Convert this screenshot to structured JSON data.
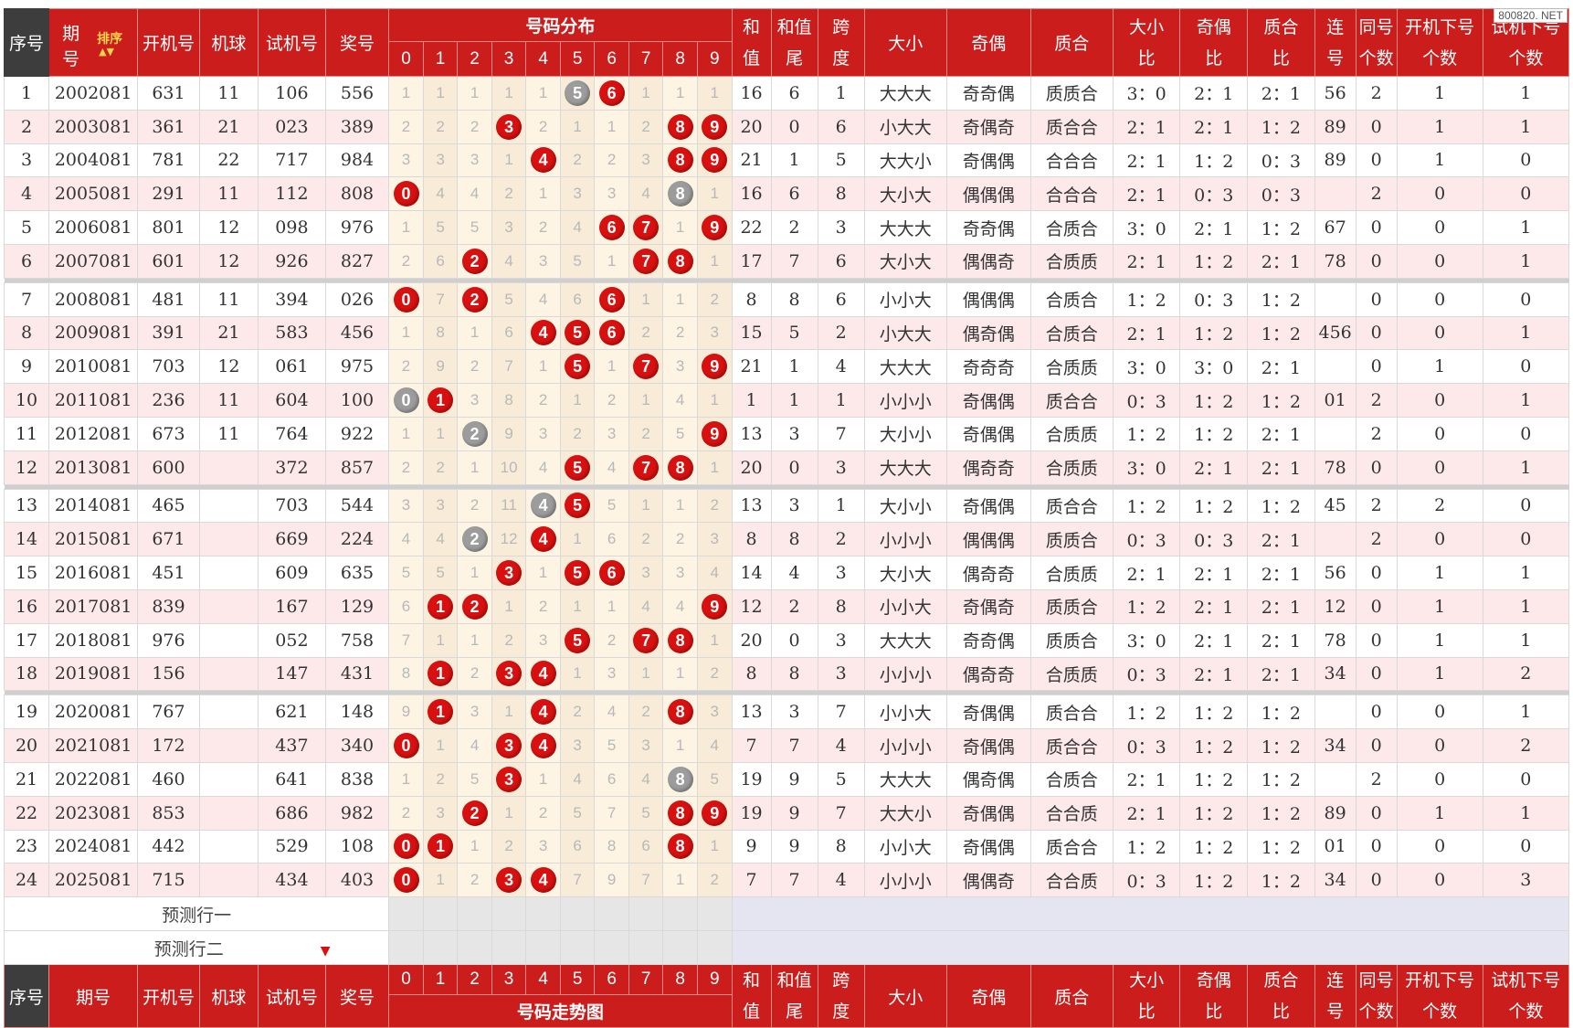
{
  "watermark": "800820. NET",
  "header": {
    "seq": "序号",
    "issue_a": "期",
    "issue_b": "号",
    "sort": "排序",
    "open": "开机号",
    "machine": "机球",
    "trial": "试机号",
    "prize": "奖号",
    "dist": "号码分布",
    "digits": [
      "0",
      "1",
      "2",
      "3",
      "4",
      "5",
      "6",
      "7",
      "8",
      "9"
    ],
    "sum_a": "和",
    "sum_b": "值",
    "tail_a": "和值",
    "tail_b": "尾",
    "span_a": "跨",
    "span_b": "度",
    "bigsmall": "大小",
    "oddeven": "奇偶",
    "primecomp": "质合",
    "bsr_a": "大小",
    "bsr_b": "比",
    "oer_a": "奇偶",
    "oer_b": "比",
    "pcr_a": "质合",
    "pcr_b": "比",
    "consec_a": "连",
    "consec_b": "号",
    "same_a": "同号",
    "same_b": "个数",
    "opennext_a": "开机下号",
    "opennext_b": "个数",
    "trialnext_a": "试机下号",
    "trialnext_b": "个数"
  },
  "footer": {
    "seq": "序号",
    "issue": "期号",
    "open": "开机号",
    "machine": "机球",
    "trial": "试机号",
    "prize": "奖号",
    "trend": "号码走势图",
    "digits": [
      "0",
      "1",
      "2",
      "3",
      "4",
      "5",
      "6",
      "7",
      "8",
      "9"
    ],
    "sum_a": "和",
    "sum_b": "值",
    "tail_a": "和值",
    "tail_b": "尾",
    "span_a": "跨",
    "span_b": "度",
    "bigsmall": "大小",
    "oddeven": "奇偶",
    "primecomp": "质合",
    "bsr_a": "大小",
    "bsr_b": "比",
    "oer_a": "奇偶",
    "oer_b": "比",
    "pcr_a": "质合",
    "pcr_b": "比",
    "consec_a": "连",
    "consec_b": "号",
    "same_a": "同号",
    "same_b": "个数",
    "opennext_a": "开机下号",
    "opennext_b": "个数",
    "trialnext_a": "试机下号",
    "trialnext_b": "个数"
  },
  "prediction_rows": [
    "预测行一",
    "预测行二"
  ],
  "ball_colors": {
    "red": "#d81010",
    "gray": "#9c9c9c"
  },
  "rows": [
    {
      "seq": "1",
      "issue": "2002081",
      "open": "631",
      "machine": "11",
      "trial": "106",
      "prize": "556",
      "dist": [
        "1",
        "1",
        "1",
        "1",
        "1",
        "5",
        "6",
        "1",
        "1",
        "1"
      ],
      "balls": {
        "5": "gray",
        "6": "red"
      },
      "sum": "16",
      "tail": "6",
      "span": "1",
      "bs": "大大大",
      "oe": "奇奇偶",
      "pc": "质质合",
      "bsr": "3：0",
      "oer": "2：1",
      "pcr": "2：1",
      "consec": "56",
      "same": "2",
      "opennext": "1",
      "trialnext": "1"
    },
    {
      "seq": "2",
      "issue": "2003081",
      "open": "361",
      "machine": "21",
      "trial": "023",
      "prize": "389",
      "dist": [
        "2",
        "2",
        "2",
        "3",
        "2",
        "1",
        "1",
        "2",
        "8",
        "9"
      ],
      "balls": {
        "3": "red",
        "8": "red",
        "9": "red"
      },
      "sum": "20",
      "tail": "0",
      "span": "6",
      "bs": "小大大",
      "oe": "奇偶奇",
      "pc": "质合合",
      "bsr": "2：1",
      "oer": "2：1",
      "pcr": "1：2",
      "consec": "89",
      "same": "0",
      "opennext": "1",
      "trialnext": "1"
    },
    {
      "seq": "3",
      "issue": "2004081",
      "open": "781",
      "machine": "22",
      "trial": "717",
      "prize": "984",
      "dist": [
        "3",
        "3",
        "3",
        "1",
        "4",
        "2",
        "2",
        "3",
        "8",
        "9"
      ],
      "balls": {
        "4": "red",
        "8": "red",
        "9": "red"
      },
      "sum": "21",
      "tail": "1",
      "span": "5",
      "bs": "大大小",
      "oe": "奇偶偶",
      "pc": "合合合",
      "bsr": "2：1",
      "oer": "1：2",
      "pcr": "0：3",
      "consec": "89",
      "same": "0",
      "opennext": "1",
      "trialnext": "0"
    },
    {
      "seq": "4",
      "issue": "2005081",
      "open": "291",
      "machine": "11",
      "trial": "112",
      "prize": "808",
      "dist": [
        "0",
        "4",
        "4",
        "2",
        "1",
        "3",
        "3",
        "4",
        "8",
        "1"
      ],
      "balls": {
        "0": "red",
        "8": "gray"
      },
      "sum": "16",
      "tail": "6",
      "span": "8",
      "bs": "大小大",
      "oe": "偶偶偶",
      "pc": "合合合",
      "bsr": "2：1",
      "oer": "0：3",
      "pcr": "0：3",
      "consec": "",
      "same": "2",
      "opennext": "0",
      "trialnext": "0"
    },
    {
      "seq": "5",
      "issue": "2006081",
      "open": "801",
      "machine": "12",
      "trial": "098",
      "prize": "976",
      "dist": [
        "1",
        "5",
        "5",
        "3",
        "2",
        "4",
        "6",
        "7",
        "1",
        "9"
      ],
      "balls": {
        "6": "red",
        "7": "red",
        "9": "red"
      },
      "sum": "22",
      "tail": "2",
      "span": "3",
      "bs": "大大大",
      "oe": "奇奇偶",
      "pc": "合质合",
      "bsr": "3：0",
      "oer": "2：1",
      "pcr": "1：2",
      "consec": "67",
      "same": "0",
      "opennext": "0",
      "trialnext": "1"
    },
    {
      "seq": "6",
      "issue": "2007081",
      "open": "601",
      "machine": "12",
      "trial": "926",
      "prize": "827",
      "dist": [
        "2",
        "6",
        "2",
        "4",
        "3",
        "5",
        "1",
        "7",
        "8",
        "1"
      ],
      "balls": {
        "2": "red",
        "7": "red",
        "8": "red"
      },
      "sum": "17",
      "tail": "7",
      "span": "6",
      "bs": "大小大",
      "oe": "偶偶奇",
      "pc": "合质质",
      "bsr": "2：1",
      "oer": "1：2",
      "pcr": "2：1",
      "consec": "78",
      "same": "0",
      "opennext": "0",
      "trialnext": "1"
    },
    {
      "sep": true
    },
    {
      "seq": "7",
      "issue": "2008081",
      "open": "481",
      "machine": "11",
      "trial": "394",
      "prize": "026",
      "dist": [
        "0",
        "7",
        "2",
        "5",
        "4",
        "6",
        "6",
        "1",
        "1",
        "2"
      ],
      "balls": {
        "0": "red",
        "2": "red",
        "6": "red"
      },
      "sum": "8",
      "tail": "8",
      "span": "6",
      "bs": "小小大",
      "oe": "偶偶偶",
      "pc": "合质合",
      "bsr": "1：2",
      "oer": "0：3",
      "pcr": "1：2",
      "consec": "",
      "same": "0",
      "opennext": "0",
      "trialnext": "0"
    },
    {
      "seq": "8",
      "issue": "2009081",
      "open": "391",
      "machine": "21",
      "trial": "583",
      "prize": "456",
      "dist": [
        "1",
        "8",
        "1",
        "6",
        "4",
        "5",
        "6",
        "2",
        "2",
        "3"
      ],
      "balls": {
        "4": "red",
        "5": "red",
        "6": "red"
      },
      "sum": "15",
      "tail": "5",
      "span": "2",
      "bs": "小大大",
      "oe": "偶奇偶",
      "pc": "合质合",
      "bsr": "2：1",
      "oer": "1：2",
      "pcr": "1：2",
      "consec": "456",
      "same": "0",
      "opennext": "0",
      "trialnext": "1"
    },
    {
      "seq": "9",
      "issue": "2010081",
      "open": "703",
      "machine": "12",
      "trial": "061",
      "prize": "975",
      "dist": [
        "2",
        "9",
        "2",
        "7",
        "1",
        "5",
        "1",
        "7",
        "3",
        "9"
      ],
      "balls": {
        "5": "red",
        "7": "red",
        "9": "red"
      },
      "sum": "21",
      "tail": "1",
      "span": "4",
      "bs": "大大大",
      "oe": "奇奇奇",
      "pc": "合质质",
      "bsr": "3：0",
      "oer": "3：0",
      "pcr": "2：1",
      "consec": "",
      "same": "0",
      "opennext": "1",
      "trialnext": "0"
    },
    {
      "seq": "10",
      "issue": "2011081",
      "open": "236",
      "machine": "11",
      "trial": "604",
      "prize": "100",
      "dist": [
        "0",
        "1",
        "3",
        "8",
        "2",
        "1",
        "2",
        "1",
        "4",
        "1"
      ],
      "balls": {
        "0": "gray",
        "1": "red"
      },
      "sum": "1",
      "tail": "1",
      "span": "1",
      "bs": "小小小",
      "oe": "奇偶偶",
      "pc": "质合合",
      "bsr": "0：3",
      "oer": "1：2",
      "pcr": "1：2",
      "consec": "01",
      "same": "2",
      "opennext": "0",
      "trialnext": "1"
    },
    {
      "seq": "11",
      "issue": "2012081",
      "open": "673",
      "machine": "11",
      "trial": "764",
      "prize": "922",
      "dist": [
        "1",
        "1",
        "2",
        "9",
        "3",
        "2",
        "3",
        "2",
        "5",
        "9"
      ],
      "balls": {
        "2": "gray",
        "9": "red"
      },
      "sum": "13",
      "tail": "3",
      "span": "7",
      "bs": "大小小",
      "oe": "奇偶偶",
      "pc": "合质质",
      "bsr": "1：2",
      "oer": "1：2",
      "pcr": "2：1",
      "consec": "",
      "same": "2",
      "opennext": "0",
      "trialnext": "0"
    },
    {
      "seq": "12",
      "issue": "2013081",
      "open": "600",
      "machine": "",
      "trial": "372",
      "prize": "857",
      "dist": [
        "2",
        "2",
        "1",
        "10",
        "4",
        "5",
        "4",
        "7",
        "8",
        "1"
      ],
      "balls": {
        "5": "red",
        "7": "red",
        "8": "red"
      },
      "sum": "20",
      "tail": "0",
      "span": "3",
      "bs": "大大大",
      "oe": "偶奇奇",
      "pc": "合质质",
      "bsr": "3：0",
      "oer": "2：1",
      "pcr": "2：1",
      "consec": "78",
      "same": "0",
      "opennext": "0",
      "trialnext": "1"
    },
    {
      "sep": true
    },
    {
      "seq": "13",
      "issue": "2014081",
      "open": "465",
      "machine": "",
      "trial": "703",
      "prize": "544",
      "dist": [
        "3",
        "3",
        "2",
        "11",
        "4",
        "5",
        "5",
        "1",
        "1",
        "2"
      ],
      "balls": {
        "4": "gray",
        "5": "red"
      },
      "sum": "13",
      "tail": "3",
      "span": "1",
      "bs": "大小小",
      "oe": "奇偶偶",
      "pc": "质合合",
      "bsr": "1：2",
      "oer": "1：2",
      "pcr": "1：2",
      "consec": "45",
      "same": "2",
      "opennext": "2",
      "trialnext": "0"
    },
    {
      "seq": "14",
      "issue": "2015081",
      "open": "671",
      "machine": "",
      "trial": "669",
      "prize": "224",
      "dist": [
        "4",
        "4",
        "2",
        "12",
        "4",
        "1",
        "6",
        "2",
        "2",
        "3"
      ],
      "balls": {
        "2": "gray",
        "4": "red"
      },
      "sum": "8",
      "tail": "8",
      "span": "2",
      "bs": "小小小",
      "oe": "偶偶偶",
      "pc": "质质合",
      "bsr": "0：3",
      "oer": "0：3",
      "pcr": "2：1",
      "consec": "",
      "same": "2",
      "opennext": "0",
      "trialnext": "0"
    },
    {
      "seq": "15",
      "issue": "2016081",
      "open": "451",
      "machine": "",
      "trial": "609",
      "prize": "635",
      "dist": [
        "5",
        "5",
        "1",
        "3",
        "1",
        "5",
        "6",
        "3",
        "3",
        "4"
      ],
      "balls": {
        "3": "red",
        "5": "red",
        "6": "red"
      },
      "sum": "14",
      "tail": "4",
      "span": "3",
      "bs": "大小大",
      "oe": "偶奇奇",
      "pc": "合质质",
      "bsr": "2：1",
      "oer": "2：1",
      "pcr": "2：1",
      "consec": "56",
      "same": "0",
      "opennext": "1",
      "trialnext": "1"
    },
    {
      "seq": "16",
      "issue": "2017081",
      "open": "839",
      "machine": "",
      "trial": "167",
      "prize": "129",
      "dist": [
        "6",
        "1",
        "2",
        "1",
        "2",
        "1",
        "1",
        "4",
        "4",
        "9"
      ],
      "balls": {
        "1": "red",
        "2": "red",
        "9": "red"
      },
      "sum": "12",
      "tail": "2",
      "span": "8",
      "bs": "小小大",
      "oe": "奇偶奇",
      "pc": "质质合",
      "bsr": "1：2",
      "oer": "2：1",
      "pcr": "2：1",
      "consec": "12",
      "same": "0",
      "opennext": "1",
      "trialnext": "1"
    },
    {
      "seq": "17",
      "issue": "2018081",
      "open": "976",
      "machine": "",
      "trial": "052",
      "prize": "758",
      "dist": [
        "7",
        "1",
        "1",
        "2",
        "3",
        "5",
        "2",
        "7",
        "8",
        "1"
      ],
      "balls": {
        "5": "red",
        "7": "red",
        "8": "red"
      },
      "sum": "20",
      "tail": "0",
      "span": "3",
      "bs": "大大大",
      "oe": "奇奇偶",
      "pc": "质质合",
      "bsr": "3：0",
      "oer": "2：1",
      "pcr": "2：1",
      "consec": "78",
      "same": "0",
      "opennext": "1",
      "trialnext": "1"
    },
    {
      "seq": "18",
      "issue": "2019081",
      "open": "156",
      "machine": "",
      "trial": "147",
      "prize": "431",
      "dist": [
        "8",
        "1",
        "2",
        "3",
        "4",
        "1",
        "3",
        "1",
        "1",
        "2"
      ],
      "balls": {
        "1": "red",
        "3": "red",
        "4": "red"
      },
      "sum": "8",
      "tail": "8",
      "span": "3",
      "bs": "小小小",
      "oe": "偶奇奇",
      "pc": "合质质",
      "bsr": "0：3",
      "oer": "2：1",
      "pcr": "2：1",
      "consec": "34",
      "same": "0",
      "opennext": "1",
      "trialnext": "2"
    },
    {
      "sep": true
    },
    {
      "seq": "19",
      "issue": "2020081",
      "open": "767",
      "machine": "",
      "trial": "621",
      "prize": "148",
      "dist": [
        "9",
        "1",
        "3",
        "1",
        "4",
        "2",
        "4",
        "2",
        "8",
        "3"
      ],
      "balls": {
        "1": "red",
        "4": "red",
        "8": "red"
      },
      "sum": "13",
      "tail": "3",
      "span": "7",
      "bs": "小小大",
      "oe": "奇偶偶",
      "pc": "质合合",
      "bsr": "1：2",
      "oer": "1：2",
      "pcr": "1：2",
      "consec": "",
      "same": "0",
      "opennext": "0",
      "trialnext": "1"
    },
    {
      "seq": "20",
      "issue": "2021081",
      "open": "172",
      "machine": "",
      "trial": "437",
      "prize": "340",
      "dist": [
        "0",
        "1",
        "4",
        "3",
        "4",
        "3",
        "5",
        "3",
        "1",
        "4"
      ],
      "balls": {
        "0": "red",
        "3": "red",
        "4": "red"
      },
      "sum": "7",
      "tail": "7",
      "span": "4",
      "bs": "小小小",
      "oe": "奇偶偶",
      "pc": "质合合",
      "bsr": "0：3",
      "oer": "1：2",
      "pcr": "1：2",
      "consec": "34",
      "same": "0",
      "opennext": "0",
      "trialnext": "2"
    },
    {
      "seq": "21",
      "issue": "2022081",
      "open": "460",
      "machine": "",
      "trial": "641",
      "prize": "838",
      "dist": [
        "1",
        "2",
        "5",
        "3",
        "1",
        "4",
        "6",
        "4",
        "8",
        "5"
      ],
      "balls": {
        "3": "red",
        "8": "gray"
      },
      "sum": "19",
      "tail": "9",
      "span": "5",
      "bs": "大大大",
      "oe": "偶奇偶",
      "pc": "合质合",
      "bsr": "2：1",
      "oer": "1：2",
      "pcr": "1：2",
      "consec": "",
      "same": "2",
      "opennext": "0",
      "trialnext": "0"
    },
    {
      "seq": "22",
      "issue": "2023081",
      "open": "853",
      "machine": "",
      "trial": "686",
      "prize": "982",
      "dist": [
        "2",
        "3",
        "2",
        "1",
        "2",
        "5",
        "7",
        "5",
        "8",
        "9"
      ],
      "balls": {
        "2": "red",
        "8": "red",
        "9": "red"
      },
      "sum": "19",
      "tail": "9",
      "span": "7",
      "bs": "大大小",
      "oe": "奇偶偶",
      "pc": "合合质",
      "bsr": "2：1",
      "oer": "1：2",
      "pcr": "1：2",
      "consec": "89",
      "same": "0",
      "opennext": "1",
      "trialnext": "1"
    },
    {
      "seq": "23",
      "issue": "2024081",
      "open": "442",
      "machine": "",
      "trial": "529",
      "prize": "108",
      "dist": [
        "0",
        "1",
        "1",
        "2",
        "3",
        "6",
        "8",
        "6",
        "8",
        "1"
      ],
      "balls": {
        "0": "red",
        "1": "red",
        "8": "red"
      },
      "sum": "9",
      "tail": "9",
      "span": "8",
      "bs": "小小大",
      "oe": "奇偶偶",
      "pc": "质合合",
      "bsr": "1：2",
      "oer": "1：2",
      "pcr": "1：2",
      "consec": "01",
      "same": "0",
      "opennext": "0",
      "trialnext": "0"
    },
    {
      "seq": "24",
      "issue": "2025081",
      "open": "715",
      "machine": "",
      "trial": "434",
      "prize": "403",
      "dist": [
        "0",
        "1",
        "2",
        "3",
        "4",
        "7",
        "9",
        "7",
        "1",
        "2"
      ],
      "balls": {
        "0": "red",
        "3": "red",
        "4": "red"
      },
      "sum": "7",
      "tail": "7",
      "span": "4",
      "bs": "小小小",
      "oe": "偶偶奇",
      "pc": "合合质",
      "bsr": "0：3",
      "oer": "1：2",
      "pcr": "1：2",
      "consec": "34",
      "same": "0",
      "opennext": "0",
      "trialnext": "3"
    }
  ]
}
